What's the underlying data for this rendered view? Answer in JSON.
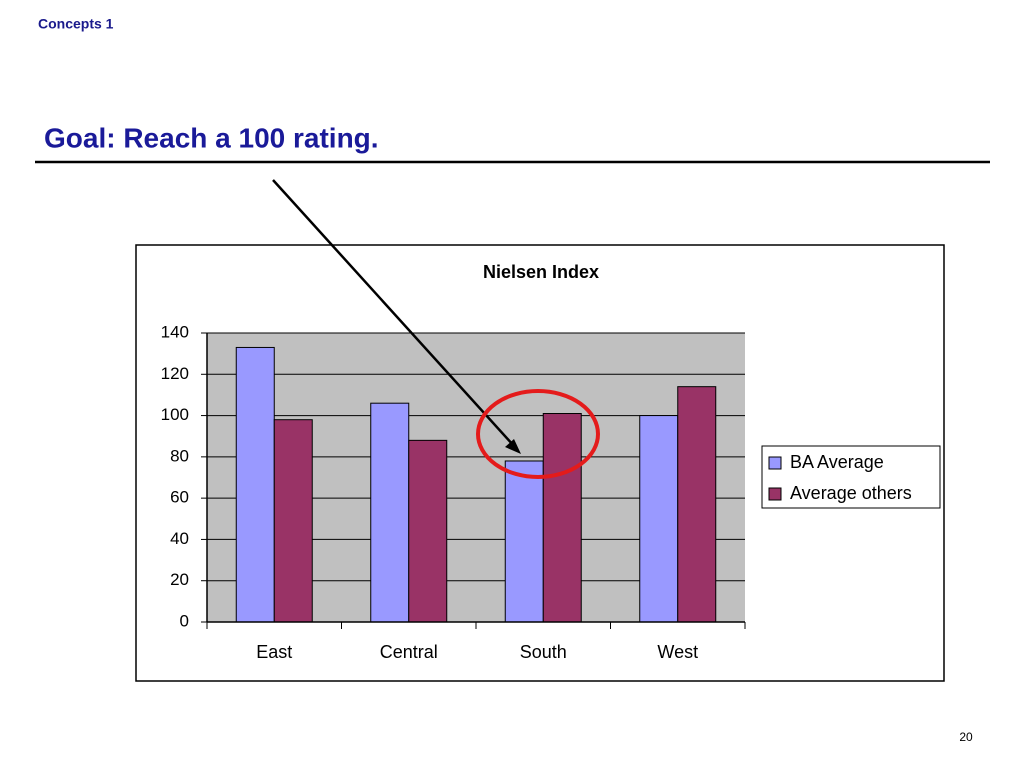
{
  "section": "Concepts 1",
  "heading": "Goal: Reach a 100 rating.",
  "page_number": "20",
  "chart_data": {
    "type": "bar",
    "title": "Nielsen Index",
    "categories": [
      "East",
      "Central",
      "South",
      "West"
    ],
    "series": [
      {
        "name": "BA Average",
        "color": "#9999ff",
        "values": [
          133,
          106,
          78,
          100
        ]
      },
      {
        "name": "Average others",
        "color": "#993366",
        "values": [
          98,
          88,
          101,
          114
        ]
      }
    ],
    "ylim": [
      0,
      140
    ],
    "yticks": [
      0,
      20,
      40,
      60,
      80,
      100,
      120,
      140
    ],
    "grid": true,
    "legend": "right"
  }
}
